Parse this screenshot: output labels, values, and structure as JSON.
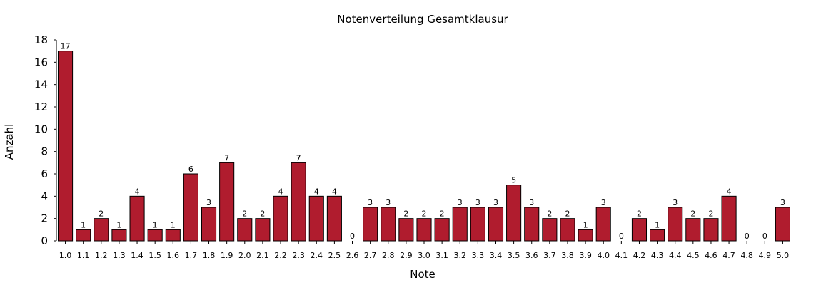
{
  "chart_data": {
    "type": "bar",
    "title": "Notenverteilung Gesamtklausur",
    "xlabel": "Note",
    "ylabel": "Anzahl",
    "ylim": [
      0,
      18
    ],
    "yticks": [
      0,
      2,
      4,
      6,
      8,
      10,
      12,
      14,
      16,
      18
    ],
    "categories": [
      "1.0",
      "1.1",
      "1.2",
      "1.3",
      "1.4",
      "1.5",
      "1.6",
      "1.7",
      "1.8",
      "1.9",
      "2.0",
      "2.1",
      "2.2",
      "2.3",
      "2.4",
      "2.5",
      "2.6",
      "2.7",
      "2.8",
      "2.9",
      "3.0",
      "3.1",
      "3.2",
      "3.3",
      "3.4",
      "3.5",
      "3.6",
      "3.7",
      "3.8",
      "3.9",
      "4.0",
      "4.1",
      "4.2",
      "4.3",
      "4.4",
      "4.5",
      "4.6",
      "4.7",
      "4.8",
      "4.9",
      "5.0"
    ],
    "values": [
      17,
      1,
      2,
      1,
      4,
      1,
      1,
      6,
      3,
      7,
      2,
      2,
      4,
      7,
      4,
      4,
      0,
      3,
      3,
      2,
      2,
      2,
      3,
      3,
      3,
      5,
      3,
      2,
      2,
      1,
      3,
      0,
      2,
      1,
      3,
      2,
      2,
      4,
      0,
      0,
      3
    ],
    "bar_color": "#b01c2e",
    "grid": false,
    "legend": false
  }
}
